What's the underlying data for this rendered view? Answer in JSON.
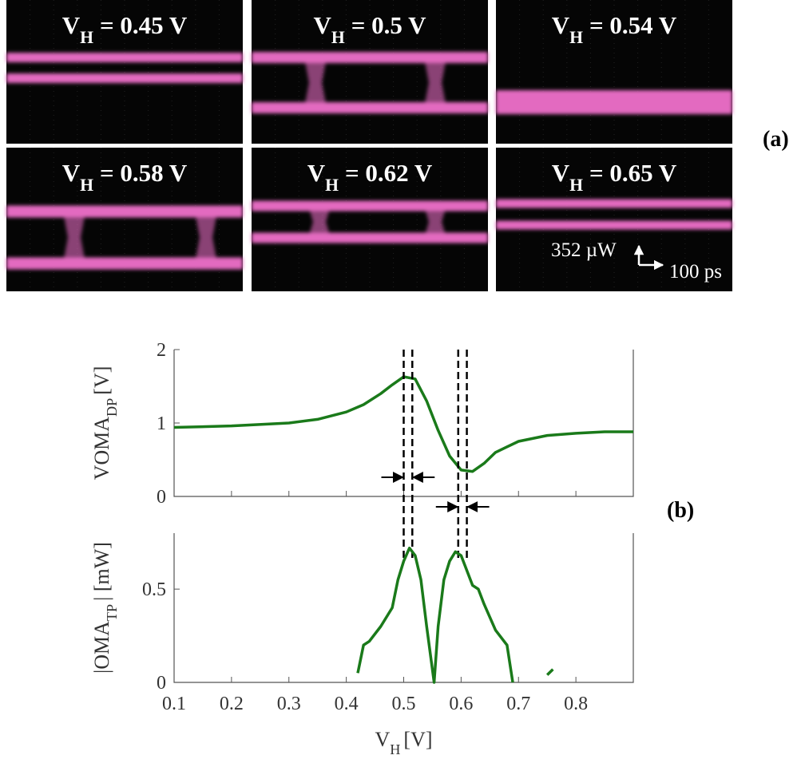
{
  "panels": [
    {
      "symbol": "V",
      "subscript": "H",
      "value": "= 0.45 V"
    },
    {
      "symbol": "V",
      "subscript": "H",
      "value": "= 0.5 V"
    },
    {
      "symbol": "V",
      "subscript": "H",
      "value": "= 0.54 V"
    },
    {
      "symbol": "V",
      "subscript": "H",
      "value": "= 0.58 V"
    },
    {
      "symbol": "V",
      "subscript": "H",
      "value": "= 0.62 V"
    },
    {
      "symbol": "V",
      "subscript": "H",
      "value": "= 0.65 V"
    }
  ],
  "panel_label_a": "(a)",
  "panel_label_b": "(b)",
  "scale": {
    "power": "352 µW",
    "time": "100 ps"
  },
  "chart_data": [
    {
      "type": "line",
      "ylabel": {
        "main": "VOMA",
        "sub": "DP",
        "unit": "[V]"
      },
      "x": [
        0.1,
        0.2,
        0.3,
        0.35,
        0.4,
        0.43,
        0.46,
        0.48,
        0.5,
        0.52,
        0.54,
        0.56,
        0.58,
        0.6,
        0.62,
        0.64,
        0.66,
        0.7,
        0.75,
        0.8,
        0.85,
        0.9
      ],
      "series": [
        {
          "color": "#1a7a1a",
          "values": [
            0.94,
            0.96,
            1.0,
            1.05,
            1.15,
            1.25,
            1.4,
            1.52,
            1.63,
            1.6,
            1.3,
            0.9,
            0.55,
            0.36,
            0.34,
            0.45,
            0.6,
            0.75,
            0.83,
            0.86,
            0.88,
            0.88
          ]
        }
      ],
      "xlim": [
        0.1,
        0.9
      ],
      "ylim": [
        0,
        2
      ],
      "yticks": [
        0,
        1,
        2
      ],
      "vlines": [
        0.5,
        0.515,
        0.595,
        0.61
      ]
    },
    {
      "type": "line",
      "ylabel": {
        "main": "|OMA",
        "sub": "TP",
        "unit": "| [mW]"
      },
      "xlabel": {
        "main": "V",
        "sub": "H",
        "unit": "[V]"
      },
      "x": [
        0.42,
        0.43,
        0.44,
        0.46,
        0.48,
        0.49,
        0.5,
        0.51,
        0.52,
        0.53,
        0.54,
        0.553,
        0.56,
        0.57,
        0.58,
        0.59,
        0.6,
        0.61,
        0.62,
        0.63,
        0.64,
        0.66,
        0.68,
        0.69,
        0.72,
        0.75,
        0.76
      ],
      "series": [
        {
          "color": "#1a7a1a",
          "values": [
            0.05,
            0.2,
            0.22,
            0.3,
            0.4,
            0.55,
            0.65,
            0.72,
            0.68,
            0.55,
            0.3,
            0,
            0.3,
            0.55,
            0.65,
            0.7,
            0.68,
            0.6,
            0.52,
            0.5,
            0.42,
            0.28,
            0.2,
            0,
            null,
            0.04,
            0.07
          ]
        }
      ],
      "xlim": [
        0.1,
        0.9
      ],
      "ylim": [
        0,
        0.8
      ],
      "yticks": [
        0,
        0.5
      ],
      "xticks": [
        0.1,
        0.2,
        0.3,
        0.4,
        0.5,
        0.6,
        0.7,
        0.8
      ]
    }
  ]
}
